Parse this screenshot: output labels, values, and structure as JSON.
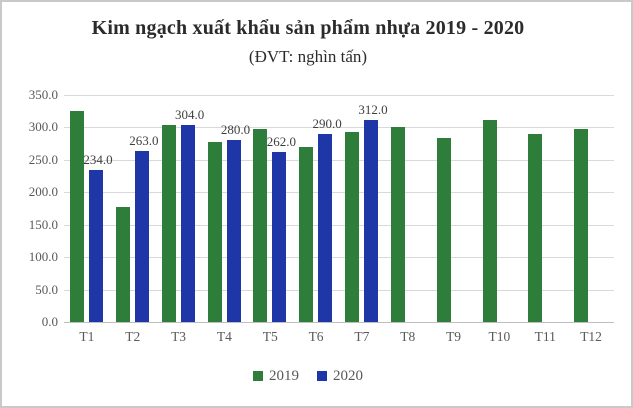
{
  "window": {
    "background": "#ffffff",
    "border_color": "#c9c9c9"
  },
  "chart_data": {
    "type": "bar",
    "title": "Kim ngạch xuất khẩu sản phẩm nhựa 2019 - 2020",
    "subtitle": "(ĐVT: nghìn tấn)",
    "categories": [
      "T1",
      "T2",
      "T3",
      "T4",
      "T5",
      "T6",
      "T7",
      "T8",
      "T9",
      "T10",
      "T11",
      "T12"
    ],
    "series": [
      {
        "name": "2019",
        "color": "#2E7D3B",
        "values": [
          325,
          178,
          304,
          278,
          297,
          270,
          293,
          300,
          284,
          311,
          290,
          298
        ],
        "labels": [
          null,
          null,
          null,
          null,
          null,
          null,
          null,
          null,
          null,
          null,
          null,
          null
        ]
      },
      {
        "name": "2020",
        "color": "#1F36A6",
        "values": [
          234,
          263,
          304,
          280,
          262,
          290,
          312,
          null,
          null,
          null,
          null,
          null
        ],
        "labels": [
          "234.0",
          "263.0",
          "304.0",
          "280.0",
          "262.0",
          "290.0",
          "312.0",
          null,
          null,
          null,
          null,
          null
        ]
      }
    ],
    "ylim": [
      0,
      350
    ],
    "ytick_step": 50,
    "ytick_labels": [
      "0.0",
      "50.0",
      "100.0",
      "150.0",
      "200.0",
      "250.0",
      "300.0",
      "350.0"
    ],
    "xlabel": "",
    "ylabel": "",
    "grid": "horizontal",
    "legend_position": "bottom",
    "colors": {
      "grid_line": "#D9D9D9",
      "axis_line": "#BFBFBF",
      "tick_label": "#595959",
      "data_label": "#404040",
      "title_text": "#2B2B2B"
    }
  }
}
